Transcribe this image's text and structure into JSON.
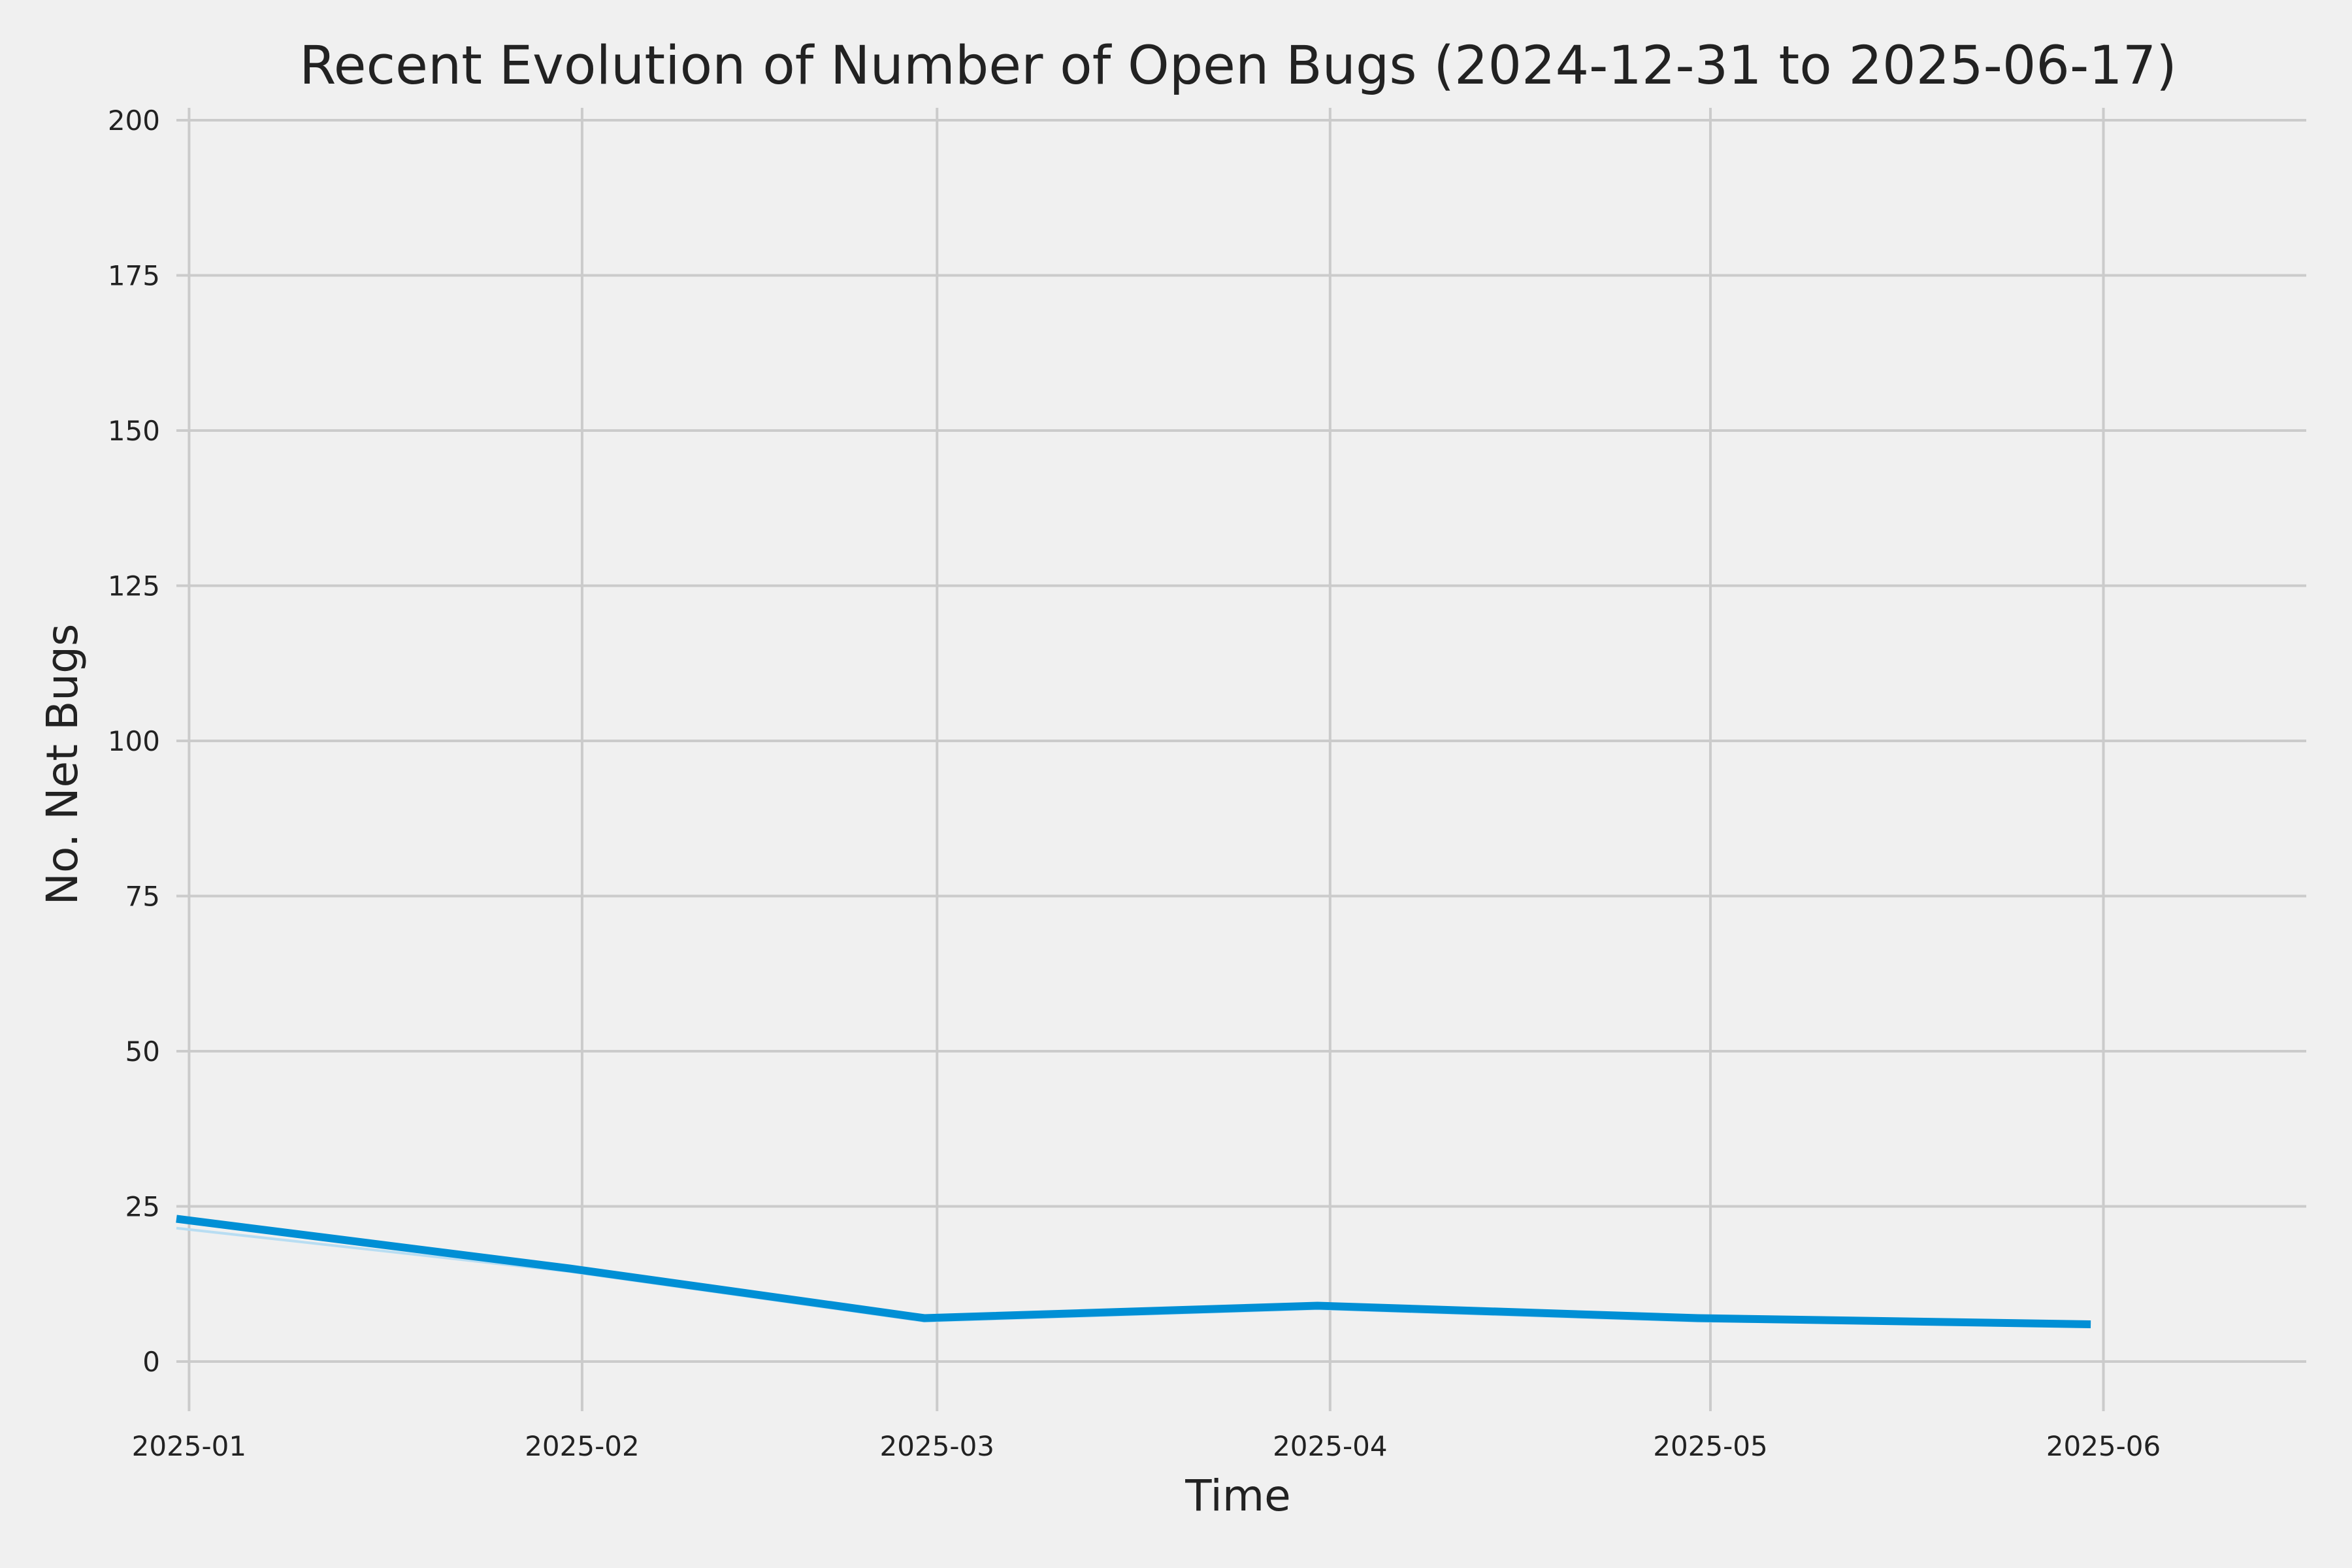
{
  "chart_data": {
    "type": "line",
    "title": "Recent Evolution of Number of Open Bugs (2024-12-31 to 2025-06-17)",
    "xlabel": "Time",
    "ylabel": "No. Net Bugs",
    "x_tick_labels": [
      "2025-01",
      "2025-02",
      "2025-03",
      "2025-04",
      "2025-05",
      "2025-06"
    ],
    "y_tick_labels": [
      "0",
      "25",
      "50",
      "75",
      "100",
      "125",
      "150",
      "175",
      "200"
    ],
    "xlim": [
      "2024-12-31",
      "2025-06-17"
    ],
    "ylim": [
      -8,
      202
    ],
    "grid": true,
    "series": [
      {
        "color": "#008fd5",
        "x": [
          "2024-12-31",
          "2025-01-31",
          "2025-02-28",
          "2025-03-31",
          "2025-04-30",
          "2025-05-31"
        ],
        "values": [
          23,
          15,
          7,
          9,
          7,
          6
        ]
      },
      {
        "color": "#b8ddf2",
        "x": [
          "2024-12-31",
          "2025-01-31",
          "2025-02-28",
          "2025-03-31",
          "2025-04-30",
          "2025-05-31"
        ],
        "values": [
          21.5,
          14.5,
          6.5,
          8.5,
          6.5,
          6
        ]
      }
    ],
    "colors": {
      "background": "#f0f0f0",
      "grid": "#cbcbcb",
      "text": "#222222"
    }
  }
}
